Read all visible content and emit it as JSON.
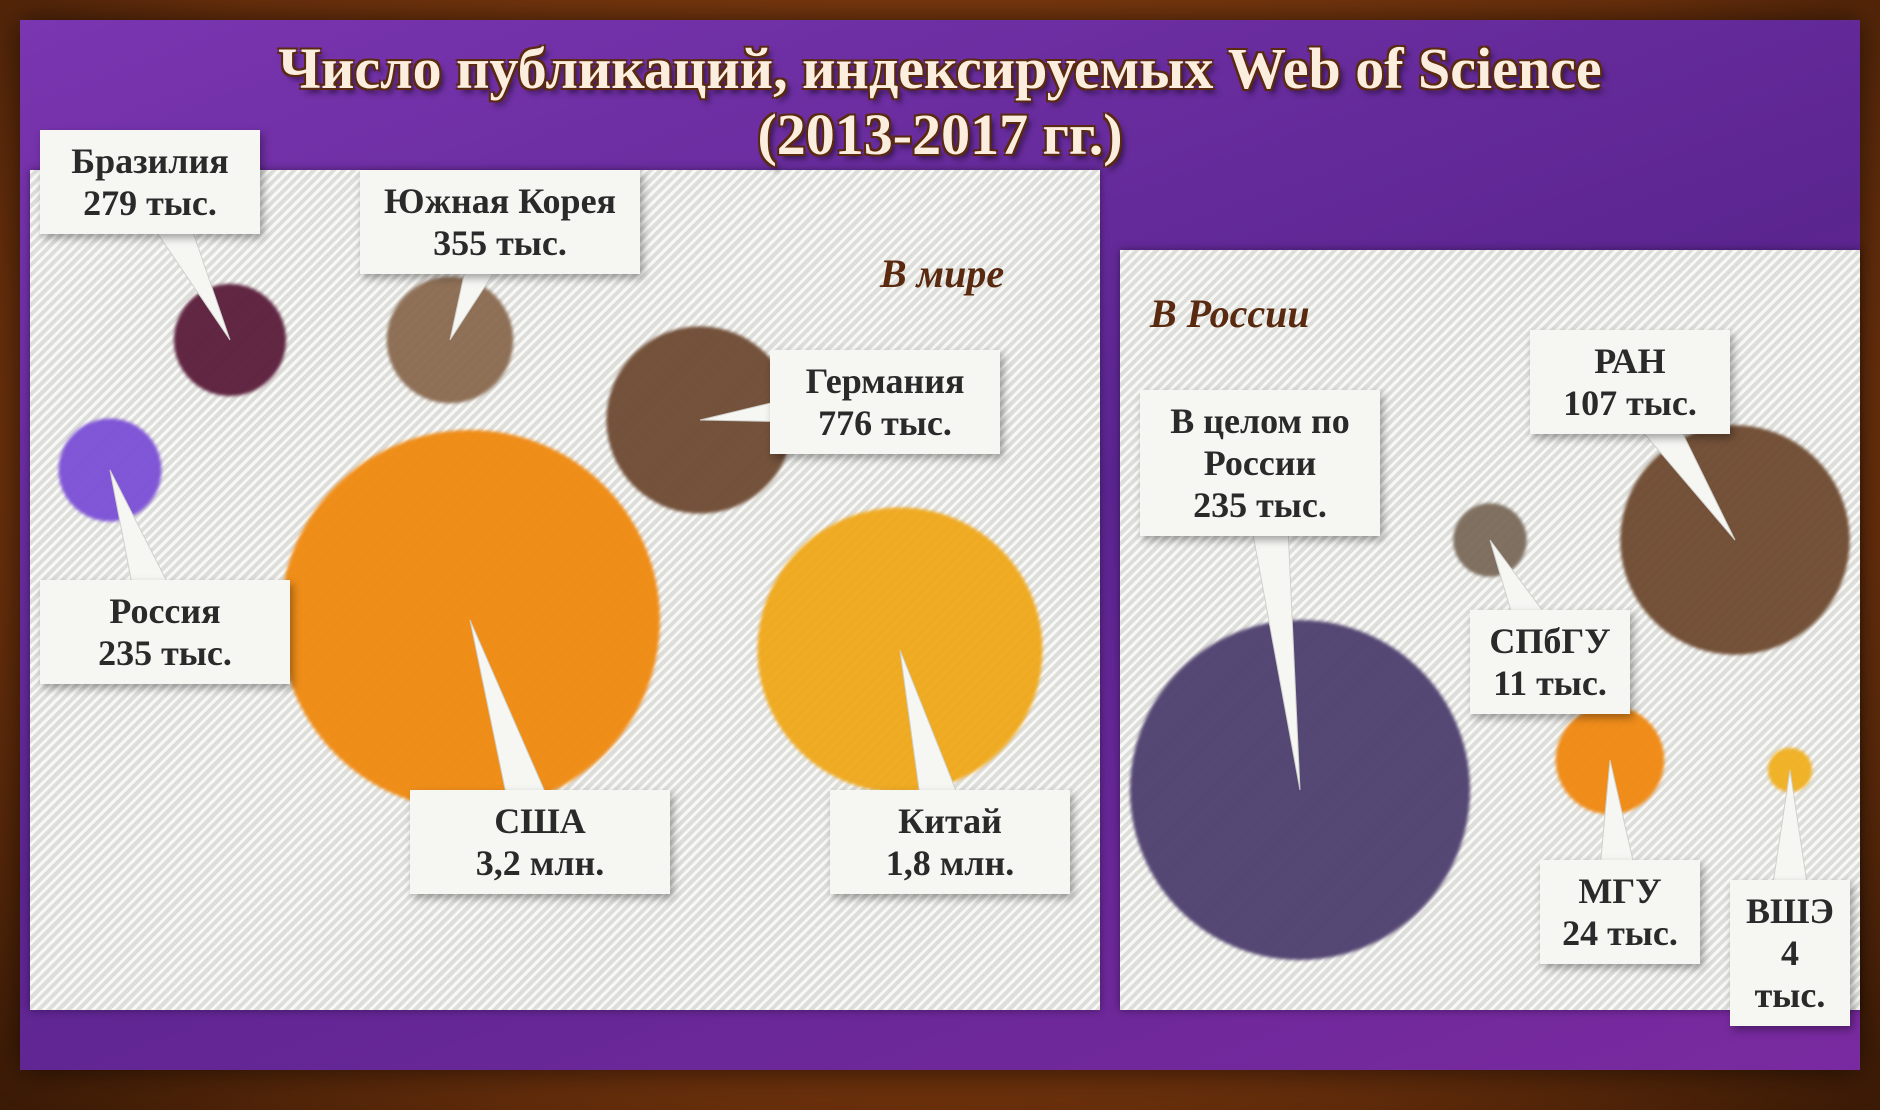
{
  "title": "Число публикаций, индексируемых Web of Science",
  "subtitle": "(2013-2017 гг.)",
  "panels": [
    {
      "heading": "В мире",
      "items": [
        {
          "name": "Бразилия",
          "value": 279000,
          "value_label": "279 тыс.",
          "color": "#5a1d3a"
        },
        {
          "name": "Южная Корея",
          "value": 355000,
          "value_label": "355 тыс.",
          "color": "#8a6a50"
        },
        {
          "name": "Германия",
          "value": 776000,
          "value_label": "776 тыс.",
          "color": "#6e4a32"
        },
        {
          "name": "Россия",
          "value": 235000,
          "value_label": "235 тыс.",
          "color": "#7b4fd6"
        },
        {
          "name": "США",
          "value": 3200000,
          "value_label": "3,2 млн.",
          "color": "#f0890f"
        },
        {
          "name": "Китай",
          "value": 1800000,
          "value_label": "1,8 млн.",
          "color": "#f0a81a"
        }
      ]
    },
    {
      "heading": "В России",
      "items": [
        {
          "name": "В целом по России",
          "value": 235000,
          "value_label": "235 тыс.",
          "color": "#4e3f6e"
        },
        {
          "name": "РАН",
          "value": 107000,
          "value_label": "107 тыс.",
          "color": "#6e4a30"
        },
        {
          "name": "СПбГУ",
          "value": 11000,
          "value_label": "11 тыс.",
          "color": "#7a6a5a"
        },
        {
          "name": "МГУ",
          "value": 24000,
          "value_label": "24 тыс.",
          "color": "#f08810"
        },
        {
          "name": "ВШЭ",
          "value": 4000,
          "value_label": "4 тыс.",
          "color": "#f0b020"
        }
      ]
    }
  ]
}
